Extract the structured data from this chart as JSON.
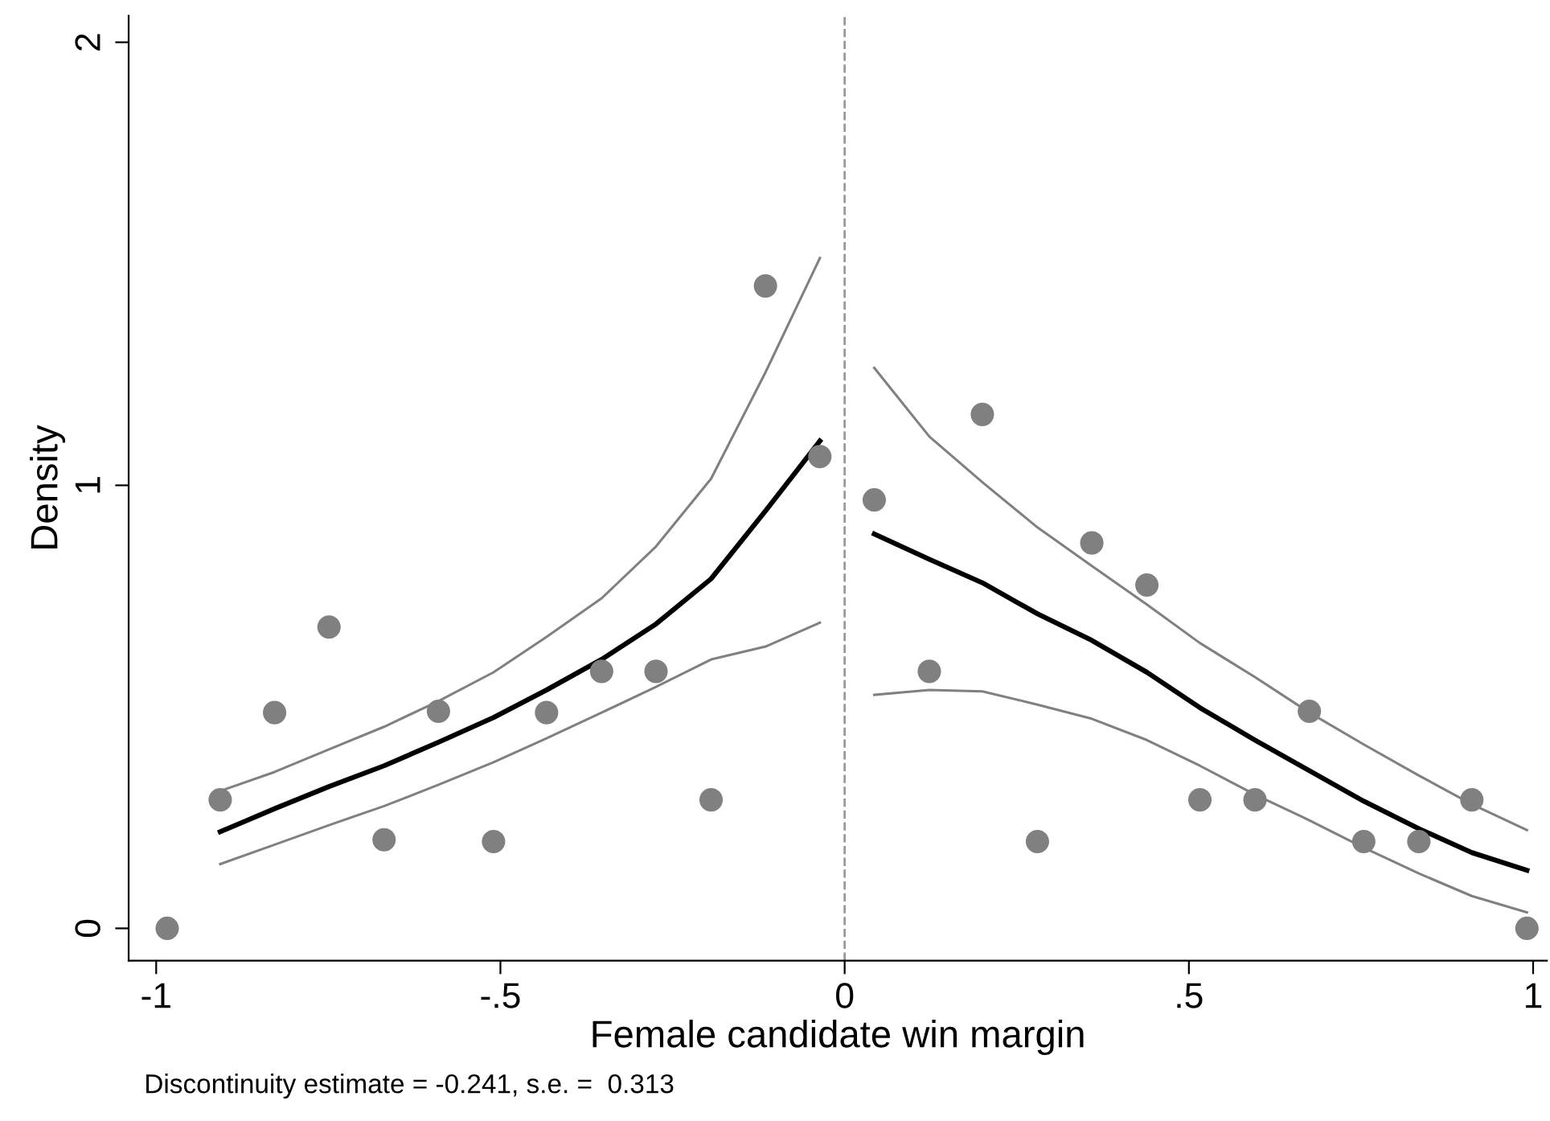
{
  "chart_data": {
    "type": "scatter",
    "xlabel": "Female candidate win margin",
    "ylabel": "Density",
    "annotations": [
      "Discontinuity estimate = -0.241, s.e. =  0.313"
    ],
    "xlim": [
      -1.04,
      1.02
    ],
    "ylim": [
      -0.073,
      2.06
    ],
    "xticks": [
      {
        "value": -1,
        "label": "-1"
      },
      {
        "value": -0.5,
        "label": "-.5"
      },
      {
        "value": 0,
        "label": "0"
      },
      {
        "value": 0.5,
        "label": ".5"
      },
      {
        "value": 1,
        "label": "1"
      }
    ],
    "yticks": [
      0,
      1,
      2
    ],
    "grid": false,
    "legend": false,
    "ref_lines": [
      {
        "axis": "x",
        "value": 0,
        "color": "#999999",
        "line_style": "dashed"
      }
    ],
    "series": [
      {
        "color": "#808080",
        "marker": "circle",
        "x": [
          -0.984,
          -0.907,
          -0.828,
          -0.749,
          -0.669,
          -0.59,
          -0.51,
          -0.433,
          -0.353,
          -0.274,
          -0.194,
          -0.115,
          -0.036,
          0.043,
          0.123,
          0.2,
          0.28,
          0.359,
          0.439,
          0.516,
          0.596,
          0.675,
          0.754,
          0.834,
          0.911,
          0.991
        ],
        "values": [
          0,
          0.29,
          0.487,
          0.68,
          0.2,
          0.49,
          0.196,
          0.487,
          0.58,
          0.58,
          0.29,
          1.45,
          1.065,
          0.967,
          0.58,
          1.16,
          0.196,
          0.87,
          0.775,
          0.29,
          0.29,
          0.49,
          0.196,
          0.196,
          0.29,
          0
        ]
      },
      {
        "type": "line",
        "color": "#000000",
        "line_style": "solid",
        "x": [
          -0.907,
          -0.828,
          -0.749,
          -0.669,
          -0.59,
          -0.51,
          -0.433,
          -0.353,
          -0.274,
          -0.194,
          -0.115,
          -0.036
        ],
        "values": [
          0.218,
          0.27,
          0.32,
          0.367,
          0.42,
          0.476,
          0.538,
          0.607,
          0.687,
          0.789,
          0.942,
          1.1
        ]
      },
      {
        "type": "line",
        "color": "#808080",
        "line_style": "solid",
        "x": [
          -0.907,
          -0.828,
          -0.749,
          -0.669,
          -0.59,
          -0.51,
          -0.433,
          -0.353,
          -0.274,
          -0.194,
          -0.115,
          -0.036
        ],
        "values": [
          0.31,
          0.353,
          0.404,
          0.455,
          0.513,
          0.578,
          0.658,
          0.745,
          0.862,
          1.015,
          1.255,
          1.513
        ]
      },
      {
        "type": "line",
        "color": "#808080",
        "line_style": "solid",
        "x": [
          -0.907,
          -0.828,
          -0.749,
          -0.669,
          -0.59,
          -0.51,
          -0.433,
          -0.353,
          -0.274,
          -0.194,
          -0.115,
          -0.036
        ],
        "values": [
          0.145,
          0.189,
          0.233,
          0.276,
          0.324,
          0.375,
          0.429,
          0.487,
          0.545,
          0.607,
          0.636,
          0.69
        ]
      },
      {
        "type": "line",
        "color": "#000000",
        "line_style": "solid",
        "x": [
          0.043,
          0.123,
          0.2,
          0.28,
          0.359,
          0.439,
          0.516,
          0.596,
          0.675,
          0.754,
          0.834,
          0.911,
          0.991
        ],
        "values": [
          0.89,
          0.833,
          0.78,
          0.71,
          0.65,
          0.578,
          0.498,
          0.425,
          0.356,
          0.287,
          0.225,
          0.171,
          0.131
        ]
      },
      {
        "type": "line",
        "color": "#808080",
        "line_style": "solid",
        "x": [
          0.043,
          0.123,
          0.2,
          0.28,
          0.359,
          0.439,
          0.516,
          0.596,
          0.675,
          0.754,
          0.834,
          0.911,
          0.991
        ],
        "values": [
          1.265,
          1.11,
          1.007,
          0.905,
          0.818,
          0.731,
          0.644,
          0.567,
          0.487,
          0.415,
          0.345,
          0.28,
          0.222
        ]
      },
      {
        "type": "line",
        "color": "#808080",
        "line_style": "solid",
        "x": [
          0.043,
          0.123,
          0.2,
          0.28,
          0.359,
          0.439,
          0.516,
          0.596,
          0.675,
          0.754,
          0.834,
          0.911,
          0.991
        ],
        "values": [
          0.527,
          0.538,
          0.535,
          0.505,
          0.473,
          0.425,
          0.367,
          0.302,
          0.244,
          0.182,
          0.124,
          0.073,
          0.036
        ]
      }
    ]
  }
}
